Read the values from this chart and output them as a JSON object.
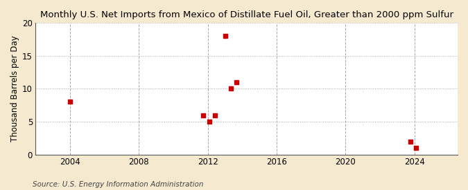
{
  "title": "Monthly U.S. Net Imports from Mexico of Distillate Fuel Oil, Greater than 2000 ppm Sulfur",
  "ylabel": "Thousand Barrels per Day",
  "source": "Source: U.S. Energy Information Administration",
  "outer_bg_color": "#f5e9d0",
  "plot_bg_color": "#ffffff",
  "scatter_color": "#cc0000",
  "xlim": [
    2002.0,
    2026.5
  ],
  "ylim": [
    0,
    20
  ],
  "yticks": [
    0,
    5,
    10,
    15,
    20
  ],
  "xticks": [
    2004,
    2008,
    2012,
    2016,
    2020,
    2024
  ],
  "data_x": [
    2004.0,
    2011.75,
    2012.08,
    2012.42,
    2013.0,
    2013.33,
    2013.67,
    2023.75,
    2024.08
  ],
  "data_y": [
    8,
    6,
    5,
    6,
    18,
    10,
    11,
    2,
    1
  ],
  "marker_size": 18,
  "title_fontsize": 9.5,
  "label_fontsize": 8.5,
  "tick_fontsize": 8.5,
  "source_fontsize": 7.5
}
